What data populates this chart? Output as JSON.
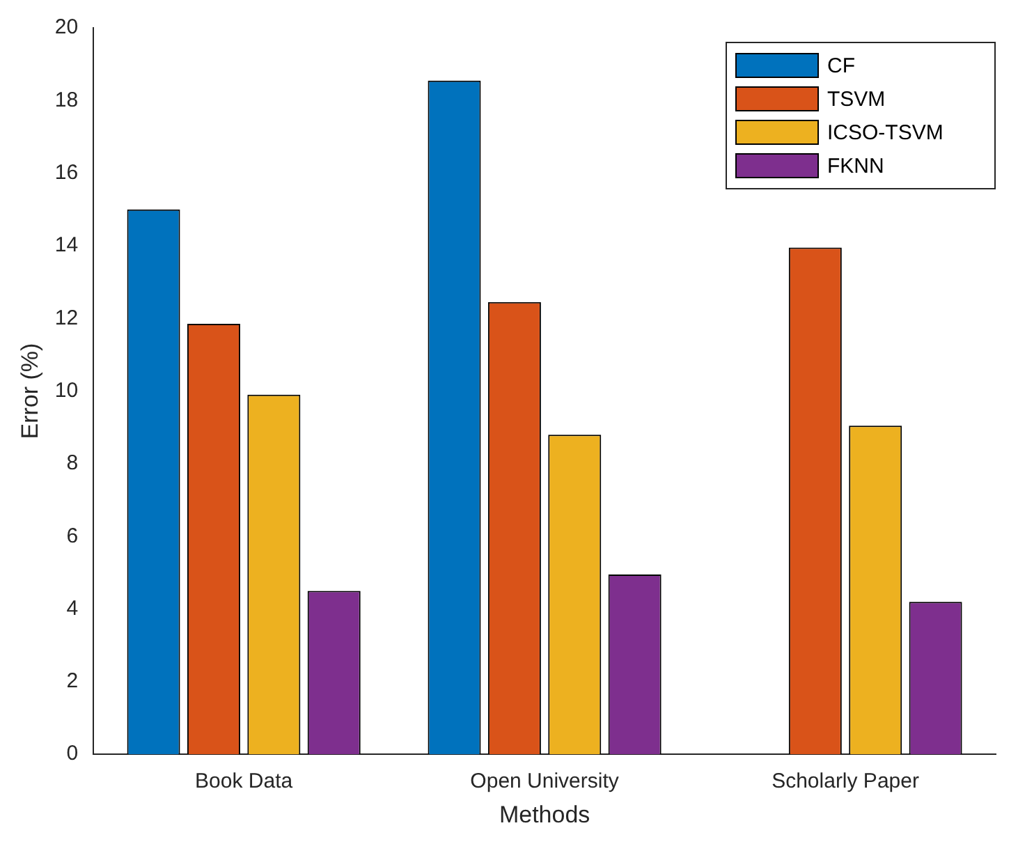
{
  "chart_data": {
    "type": "bar",
    "xlabel": "Methods",
    "ylabel": "Error (%)",
    "categories": [
      "Book Data",
      "Open University",
      "Scholarly Paper"
    ],
    "series": [
      {
        "name": "CF",
        "color": "#0072bd",
        "values": [
          15.0,
          18.55,
          null
        ]
      },
      {
        "name": "TSVM",
        "color": "#d95319",
        "values": [
          11.85,
          12.45,
          13.95
        ]
      },
      {
        "name": "ICSO-TSVM",
        "color": "#edb120",
        "values": [
          9.9,
          8.8,
          9.05
        ]
      },
      {
        "name": "FKNN",
        "color": "#7e2f8e",
        "values": [
          4.5,
          4.95,
          4.2
        ]
      }
    ],
    "ylim": [
      0,
      20
    ],
    "yticks": [
      0,
      2,
      4,
      6,
      8,
      10,
      12,
      14,
      16,
      18,
      20
    ],
    "grid": false,
    "legend": "top right"
  }
}
